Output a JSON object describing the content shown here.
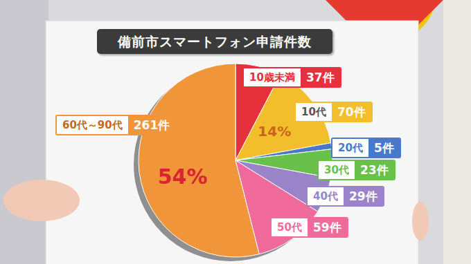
{
  "chart_data": {
    "type": "pie",
    "title": "備前市スマートフォン申請件数",
    "categories": [
      "10歳未満",
      "10代",
      "20代",
      "30代",
      "40代",
      "50代",
      "60代～90代"
    ],
    "values": [
      37,
      70,
      5,
      23,
      29,
      59,
      261
    ],
    "value_labels": [
      "37件",
      "70件",
      "5件",
      "23件",
      "29件",
      "59件",
      "261件"
    ],
    "colors": [
      "#e5313b",
      "#f2be2c",
      "#4a78c8",
      "#69c04a",
      "#9a83c8",
      "#f06a9c",
      "#f0953a"
    ],
    "data_labels": true,
    "percentages": [
      null,
      14,
      null,
      null,
      null,
      null,
      54
    ],
    "percentage_labels": [
      null,
      "14%",
      null,
      null,
      null,
      null,
      "54%"
    ]
  }
}
